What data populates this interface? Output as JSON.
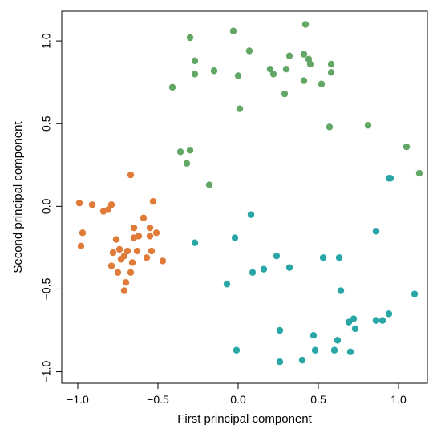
{
  "chart_data": {
    "type": "scatter",
    "xlabel": "First principal component",
    "ylabel": "Second principal component",
    "xlim": [
      -1.1,
      1.18
    ],
    "ylim": [
      -1.07,
      1.18
    ],
    "xticks": [
      -1.0,
      -0.5,
      0.0,
      0.5,
      1.0
    ],
    "yticks": [
      -1.0,
      -0.5,
      0.0,
      0.5,
      1.0
    ],
    "xtick_labels": [
      "−1.0",
      "−0.5",
      "0.0",
      "0.5",
      "1.0"
    ],
    "ytick_labels": [
      "−1.0",
      "−0.5",
      "0.0",
      "0.5",
      "1.0"
    ],
    "grid": false,
    "series": [
      {
        "color": "#63a766",
        "points": [
          [
            -0.3,
            1.02
          ],
          [
            -0.03,
            1.06
          ],
          [
            0.07,
            0.94
          ],
          [
            0.42,
            1.1
          ],
          [
            0.32,
            0.91
          ],
          [
            0.41,
            0.92
          ],
          [
            0.44,
            0.89
          ],
          [
            0.45,
            0.86
          ],
          [
            -0.27,
            0.88
          ],
          [
            -0.27,
            0.8
          ],
          [
            -0.15,
            0.82
          ],
          [
            0.0,
            0.79
          ],
          [
            0.2,
            0.83
          ],
          [
            0.22,
            0.8
          ],
          [
            0.3,
            0.83
          ],
          [
            0.41,
            0.76
          ],
          [
            0.52,
            0.74
          ],
          [
            0.58,
            0.86
          ],
          [
            0.58,
            0.81
          ],
          [
            0.29,
            0.68
          ],
          [
            -0.41,
            0.72
          ],
          [
            0.01,
            0.59
          ],
          [
            0.57,
            0.48
          ],
          [
            0.81,
            0.49
          ],
          [
            -0.36,
            0.33
          ],
          [
            -0.3,
            0.34
          ],
          [
            -0.32,
            0.26
          ],
          [
            -0.18,
            0.13
          ],
          [
            1.05,
            0.36
          ],
          [
            1.13,
            0.2
          ]
        ]
      },
      {
        "color": "#e07b39",
        "points": [
          [
            -0.67,
            0.19
          ],
          [
            -0.53,
            0.03
          ],
          [
            -0.99,
            0.02
          ],
          [
            -0.91,
            0.01
          ],
          [
            -0.79,
            0.01
          ],
          [
            -0.81,
            -0.02
          ],
          [
            -0.84,
            -0.03
          ],
          [
            -0.59,
            -0.07
          ],
          [
            -0.97,
            -0.16
          ],
          [
            -0.65,
            -0.13
          ],
          [
            -0.55,
            -0.13
          ],
          [
            -0.51,
            -0.16
          ],
          [
            -0.55,
            -0.18
          ],
          [
            -0.62,
            -0.18
          ],
          [
            -0.65,
            -0.19
          ],
          [
            -0.76,
            -0.2
          ],
          [
            -0.98,
            -0.24
          ],
          [
            -0.74,
            -0.26
          ],
          [
            -0.69,
            -0.27
          ],
          [
            -0.54,
            -0.27
          ],
          [
            -0.63,
            -0.27
          ],
          [
            -0.78,
            -0.28
          ],
          [
            -0.71,
            -0.3
          ],
          [
            -0.57,
            -0.31
          ],
          [
            -0.73,
            -0.32
          ],
          [
            -0.47,
            -0.33
          ],
          [
            -0.66,
            -0.34
          ],
          [
            -0.79,
            -0.36
          ],
          [
            -0.75,
            -0.4
          ],
          [
            -0.67,
            -0.4
          ],
          [
            -0.7,
            -0.46
          ],
          [
            -0.71,
            -0.51
          ]
        ]
      },
      {
        "color": "#29a6a6",
        "points": [
          [
            0.08,
            -0.05
          ],
          [
            -0.02,
            -0.19
          ],
          [
            -0.27,
            -0.22
          ],
          [
            0.86,
            -0.15
          ],
          [
            0.94,
            0.17
          ],
          [
            0.95,
            0.17
          ],
          [
            0.24,
            -0.3
          ],
          [
            0.53,
            -0.31
          ],
          [
            0.63,
            -0.31
          ],
          [
            0.16,
            -0.38
          ],
          [
            0.32,
            -0.37
          ],
          [
            0.09,
            -0.4
          ],
          [
            -0.07,
            -0.47
          ],
          [
            0.64,
            -0.51
          ],
          [
            1.1,
            -0.53
          ],
          [
            0.72,
            -0.68
          ],
          [
            0.69,
            -0.7
          ],
          [
            0.86,
            -0.69
          ],
          [
            0.9,
            -0.69
          ],
          [
            0.94,
            -0.65
          ],
          [
            0.73,
            -0.74
          ],
          [
            0.26,
            -0.75
          ],
          [
            0.47,
            -0.78
          ],
          [
            0.62,
            -0.81
          ],
          [
            -0.01,
            -0.87
          ],
          [
            0.48,
            -0.87
          ],
          [
            0.6,
            -0.87
          ],
          [
            0.7,
            -0.88
          ],
          [
            0.26,
            -0.94
          ],
          [
            0.4,
            -0.93
          ]
        ]
      }
    ]
  }
}
